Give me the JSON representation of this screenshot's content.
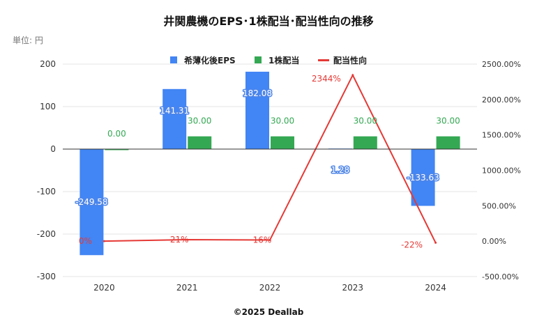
{
  "chart_data": {
    "type": "bar",
    "title": "井関農機のEPS･1株配当･配当性向の推移",
    "unit_label": "単位: 円",
    "footer": "©2025 Deallab",
    "categories": [
      "2020",
      "2021",
      "2022",
      "2023",
      "2024"
    ],
    "y_left": {
      "min": -300,
      "max": 200,
      "ticks": [
        "200",
        "100",
        "0",
        "-100",
        "-200",
        "-300"
      ],
      "tick_values": [
        200,
        100,
        0,
        -100,
        -200,
        -300
      ]
    },
    "y_right": {
      "min": -500,
      "max": 2500,
      "ticks": [
        "2500.00%",
        "2000.00%",
        "1500.00%",
        "1000.00%",
        "500.00%",
        "0.00%",
        "-500.00%"
      ],
      "tick_values": [
        2500,
        2000,
        1500,
        1000,
        500,
        0,
        -500
      ]
    },
    "legend": {
      "position": "top",
      "items": [
        {
          "label": "希薄化後EPS",
          "color": "#4285f4",
          "kind": "bar"
        },
        {
          "label": "1株配当",
          "color": "#34a853",
          "kind": "bar"
        },
        {
          "label": "配当性向",
          "color": "#e53935",
          "kind": "line"
        }
      ]
    },
    "series": [
      {
        "name": "希薄化後EPS",
        "type": "bar",
        "axis": "left",
        "color": "#4285f4",
        "values": [
          -249.58,
          141.31,
          182.08,
          1.28,
          -133.63
        ],
        "labels": [
          "-249.58",
          "141.31",
          "182.08",
          "1.28",
          "-133.63"
        ]
      },
      {
        "name": "1株配当",
        "type": "bar",
        "axis": "left",
        "color": "#34a853",
        "values": [
          0,
          30,
          30,
          30,
          30
        ],
        "labels": [
          "0.00",
          "30.00",
          "30.00",
          "30.00",
          "30.00"
        ]
      },
      {
        "name": "配当性向",
        "type": "line",
        "axis": "right",
        "color": "#e53935",
        "values": [
          0,
          21,
          16,
          2344,
          -22
        ],
        "labels": [
          "0%",
          "21%",
          "16%",
          "2344%",
          "-22%"
        ]
      }
    ],
    "grid": true
  }
}
